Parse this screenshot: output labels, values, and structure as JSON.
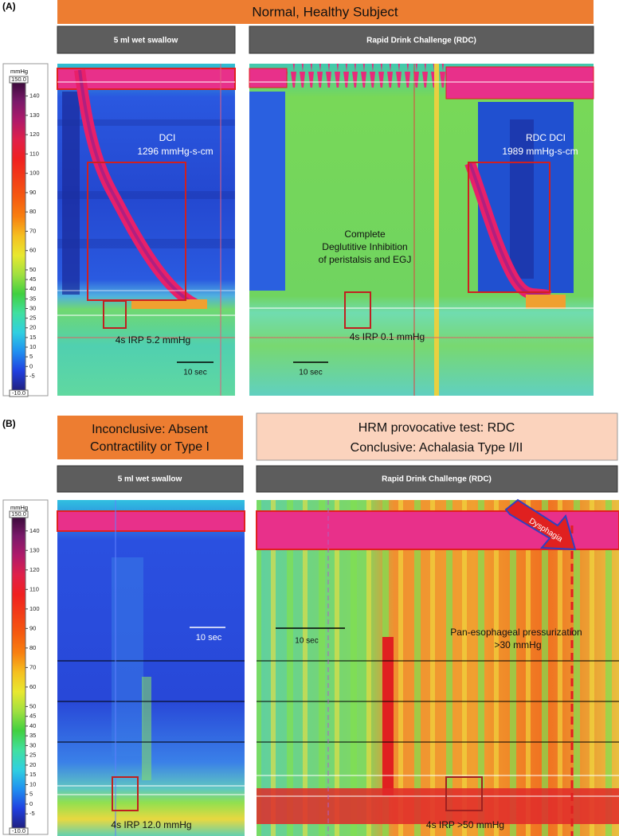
{
  "panel_a": {
    "label": "(A)",
    "title": "Normal, Healthy Subject",
    "colorbar": {
      "unit": "mmHg",
      "max_label": "150.0",
      "min_label": "-10.0",
      "ticks": [
        140,
        130,
        120,
        110,
        100,
        90,
        80,
        70,
        60,
        50,
        45,
        40,
        35,
        30,
        25,
        20,
        15,
        10,
        5,
        0,
        -5
      ]
    },
    "left": {
      "header": "5 ml wet swallow",
      "dci_label": "DCI",
      "dci_value": "1296 mmHg-s-cm",
      "irp": "4s IRP 5.2 mmHg",
      "scale": "10 sec"
    },
    "right": {
      "header": "Rapid Drink Challenge (RDC)",
      "dci_label": "RDC DCI",
      "dci_value": "1989 mmHg-s-cm",
      "note": [
        "Complete",
        "Deglutitive Inhibition",
        "of peristalsis and EGJ"
      ],
      "irp": "4s IRP  0.1 mmHg",
      "scale": "10 sec"
    }
  },
  "panel_b": {
    "label": "(B)",
    "left_title": [
      "Inconclusive: Absent",
      "Contractility or Type I"
    ],
    "right_title": [
      "HRM provocative test: RDC",
      "Conclusive: Achalasia Type I/II"
    ],
    "colorbar": {
      "unit": "mmHg",
      "max_label": "150.0",
      "min_label": "-10.0",
      "ticks": [
        140,
        130,
        120,
        110,
        100,
        90,
        80,
        70,
        60,
        50,
        45,
        40,
        35,
        30,
        25,
        20,
        15,
        10,
        5,
        0,
        -5
      ]
    },
    "left": {
      "header": "5 ml wet swallow",
      "scale": "10 sec",
      "irp": "4s IRP 12.0 mmHg"
    },
    "right": {
      "header": "Rapid Drink Challenge (RDC)",
      "scale": "10 sec",
      "note": [
        "Pan-esophageal pressurization",
        ">30 mmHg"
      ],
      "irp": "4s IRP  >50 mmHg",
      "arrow": "Dysphagia"
    }
  }
}
